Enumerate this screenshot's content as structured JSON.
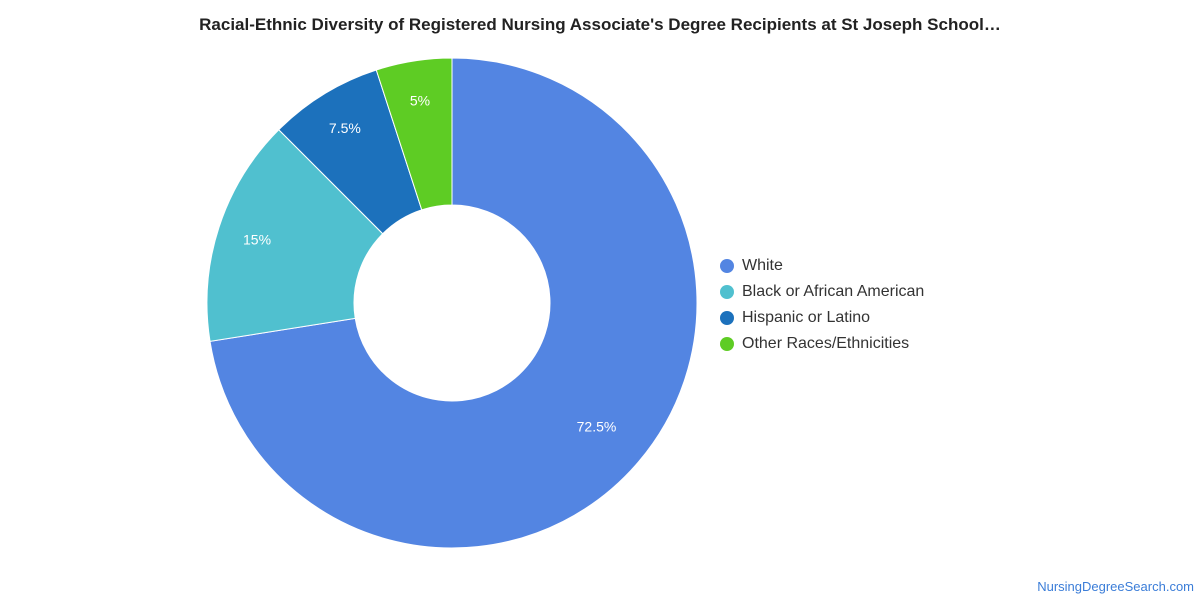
{
  "title": "Racial-Ethnic Diversity of Registered Nursing Associate's Degree Recipients at St Joseph School…",
  "watermark": "NursingDegreeSearch.com",
  "chart_data": {
    "type": "pie",
    "donut": true,
    "legend_position": "right",
    "slices": [
      {
        "label": "White",
        "value": 72.5,
        "display": "72.5%",
        "color": "#5385e2"
      },
      {
        "label": "Black or African American",
        "value": 15,
        "display": "15%",
        "color": "#50c0cf"
      },
      {
        "label": "Hispanic or Latino",
        "value": 7.5,
        "display": "7.5%",
        "color": "#1c71bc"
      },
      {
        "label": "Other Races/Ethnicities",
        "value": 5,
        "display": "5%",
        "color": "#5ecc24"
      }
    ]
  }
}
